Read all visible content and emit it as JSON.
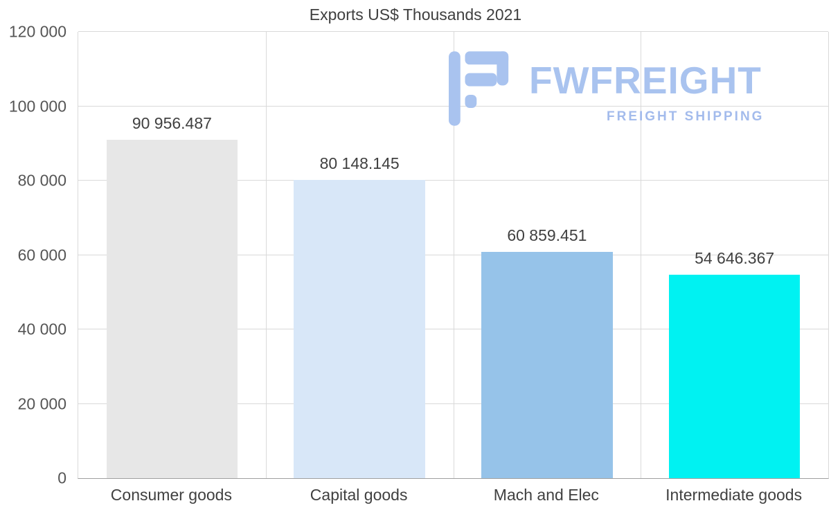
{
  "chart_data": {
    "type": "bar",
    "title": "Exports US$ Thousands 2021",
    "categories": [
      "Consumer goods",
      "Capital goods",
      "Mach and Elec",
      "Intermediate goods"
    ],
    "values": [
      90956.487,
      80148.145,
      60859.451,
      54646.367
    ],
    "value_labels": [
      "90 956.487",
      "80 148.145",
      "60 859.451",
      "54 646.367"
    ],
    "bar_colors": [
      "#e7e7e7",
      "#d8e7f8",
      "#96c3e9",
      "#00f2f2"
    ],
    "xlabel": "",
    "ylabel": "",
    "ylim": [
      0,
      120000
    ],
    "yticks": [
      {
        "label": "120 000",
        "value": 120000
      },
      {
        "label": "100 000",
        "value": 100000
      },
      {
        "label": "80 000",
        "value": 80000
      },
      {
        "label": "60 000",
        "value": 60000
      },
      {
        "label": "40 000",
        "value": 40000
      },
      {
        "label": "20 000",
        "value": 20000
      },
      {
        "label": "0",
        "value": 0
      }
    ],
    "grid": true,
    "legend": "none"
  },
  "watermark": {
    "brand": "FWFREIGHT",
    "tagline": "FREIGHT SHIPPING",
    "color": "#a9c3ef"
  }
}
